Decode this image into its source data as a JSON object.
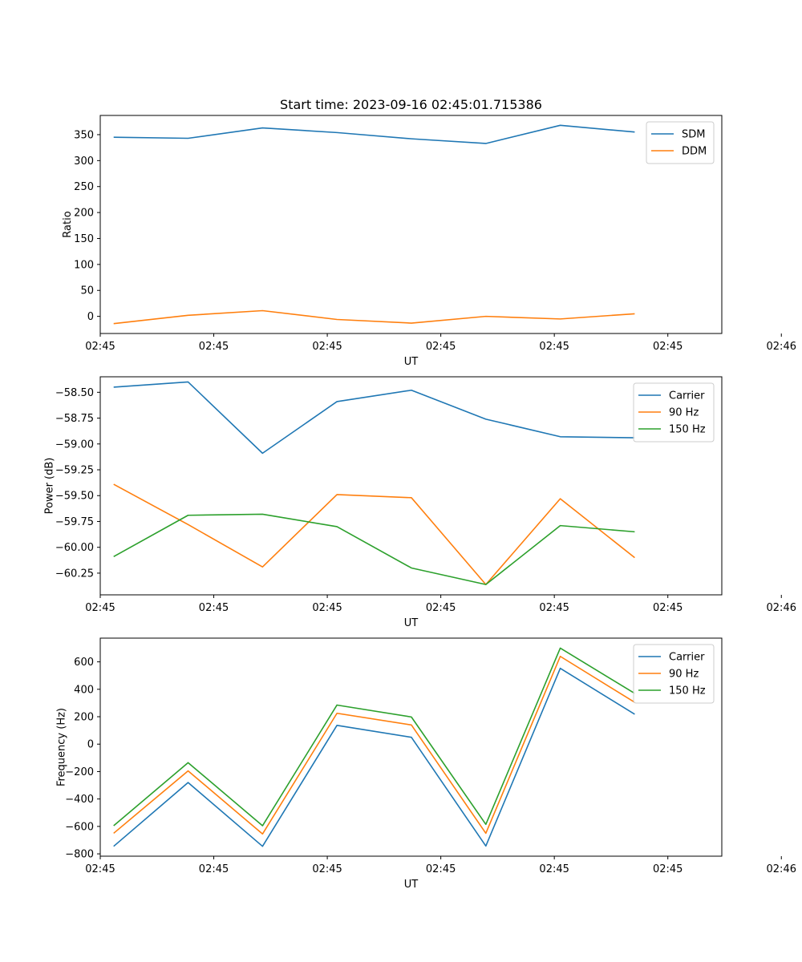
{
  "figure": {
    "title": "Start time: 2023-09-16 02:45:01.715386"
  },
  "chart_data": [
    {
      "type": "line",
      "title": "Start time: 2023-09-16 02:45:01.715386",
      "xlabel": "UT",
      "ylabel": "Ratio",
      "x": [
        1,
        2,
        3,
        4,
        5,
        6,
        7,
        8
      ],
      "xlim": [
        0.82,
        9.17
      ],
      "xticks": [
        0.82,
        2.345,
        3.87,
        5.395,
        6.92,
        8.445,
        9.97
      ],
      "xtick_labels": [
        "02:45",
        "02:45",
        "02:45",
        "02:45",
        "02:45",
        "02:45",
        "02:46"
      ],
      "ylim": [
        -33,
        387
      ],
      "yticks": [
        0,
        50,
        100,
        150,
        200,
        250,
        300,
        350
      ],
      "ytick_labels": [
        "0",
        "50",
        "100",
        "150",
        "200",
        "250",
        "300",
        "350"
      ],
      "legend_position": "top-right",
      "series": [
        {
          "name": "SDM",
          "color": "#1f77b4",
          "values": [
            345,
            343,
            363,
            354,
            342,
            333,
            368,
            355
          ]
        },
        {
          "name": "DDM",
          "color": "#ff7f0e",
          "values": [
            -14,
            2,
            11,
            -6,
            -13,
            0,
            -5,
            5
          ]
        }
      ]
    },
    {
      "type": "line",
      "title": "",
      "xlabel": "UT",
      "ylabel": "Power (dB)",
      "x": [
        1,
        2,
        3,
        4,
        5,
        6,
        7,
        8
      ],
      "xlim": [
        0.82,
        9.17
      ],
      "xticks": [
        0.82,
        2.345,
        3.87,
        5.395,
        6.92,
        8.445,
        9.97
      ],
      "xtick_labels": [
        "02:45",
        "02:45",
        "02:45",
        "02:45",
        "02:45",
        "02:45",
        "02:46"
      ],
      "ylim": [
        -60.46,
        -58.35
      ],
      "yticks": [
        -58.5,
        -58.75,
        -59.0,
        -59.25,
        -59.5,
        -59.75,
        -60.0,
        -60.25
      ],
      "ytick_labels": [
        "−58.50",
        "−58.75",
        "−59.00",
        "−59.25",
        "−59.50",
        "−59.75",
        "−60.00",
        "−60.25"
      ],
      "legend_position": "top-right",
      "series": [
        {
          "name": "Carrier",
          "color": "#1f77b4",
          "values": [
            -58.45,
            -58.4,
            -59.09,
            -58.59,
            -58.48,
            -58.76,
            -58.93,
            -58.94
          ]
        },
        {
          "name": "90 Hz",
          "color": "#ff7f0e",
          "values": [
            -59.39,
            -59.78,
            -60.19,
            -59.49,
            -59.52,
            -60.36,
            -59.53,
            -60.1
          ]
        },
        {
          "name": "150 Hz",
          "color": "#2ca02c",
          "values": [
            -60.09,
            -59.69,
            -59.68,
            -59.8,
            -60.2,
            -60.36,
            -59.79,
            -59.85
          ]
        }
      ]
    },
    {
      "type": "line",
      "title": "",
      "xlabel": "UT",
      "ylabel": "Frequency (Hz)",
      "x": [
        1,
        2,
        3,
        4,
        5,
        6,
        7,
        8
      ],
      "xlim": [
        0.82,
        9.17
      ],
      "xticks": [
        0.82,
        2.345,
        3.87,
        5.395,
        6.92,
        8.445,
        9.97
      ],
      "xtick_labels": [
        "02:45",
        "02:45",
        "02:45",
        "02:45",
        "02:45",
        "02:45",
        "02:46"
      ],
      "ylim": [
        -817,
        773
      ],
      "yticks": [
        -800,
        -600,
        -400,
        -200,
        0,
        200,
        400,
        600
      ],
      "ytick_labels": [
        "−800",
        "−600",
        "−400",
        "−200",
        "0",
        "200",
        "400",
        "600"
      ],
      "legend_position": "top-right",
      "series": [
        {
          "name": "Carrier",
          "color": "#1f77b4",
          "values": [
            -745,
            -280,
            -745,
            137,
            50,
            -743,
            553,
            218
          ]
        },
        {
          "name": "90 Hz",
          "color": "#ff7f0e",
          "values": [
            -650,
            -195,
            -655,
            225,
            140,
            -650,
            640,
            305
          ]
        },
        {
          "name": "150 Hz",
          "color": "#2ca02c",
          "values": [
            -595,
            -135,
            -595,
            285,
            198,
            -585,
            700,
            370
          ]
        }
      ]
    }
  ]
}
